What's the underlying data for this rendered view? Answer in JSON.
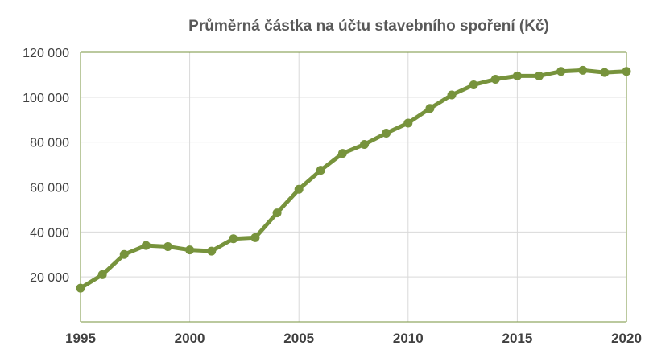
{
  "chart_data": {
    "type": "line",
    "title": "Průměrná částka na účtu stavebního spoření (Kč)",
    "xlabel": "",
    "ylabel": "",
    "x": [
      1995,
      1996,
      1997,
      1998,
      1999,
      2000,
      2001,
      2002,
      2003,
      2004,
      2005,
      2006,
      2007,
      2008,
      2009,
      2010,
      2011,
      2012,
      2013,
      2014,
      2015,
      2016,
      2017,
      2018,
      2019,
      2020
    ],
    "series": [
      {
        "values": [
          15000,
          21000,
          30000,
          34000,
          33500,
          32000,
          31500,
          37000,
          37500,
          48500,
          59000,
          67500,
          75000,
          79000,
          84000,
          88500,
          95000,
          101000,
          105500,
          108000,
          109500,
          109500,
          111500,
          112000,
          111000,
          111500
        ],
        "color": "#77933c"
      }
    ],
    "xlim": [
      1995,
      2020
    ],
    "ylim": [
      0,
      120000
    ],
    "x_ticks": [
      "1995",
      "2000",
      "2005",
      "2010",
      "2015",
      "2020"
    ],
    "x_tick_values": [
      1995,
      2000,
      2005,
      2010,
      2015,
      2020
    ],
    "y_ticks": [
      "20 000",
      "40 000",
      "60 000",
      "80 000",
      "100 000",
      "120 000"
    ],
    "y_tick_values": [
      20000,
      40000,
      60000,
      80000,
      100000,
      120000
    ],
    "grid": true,
    "legend": "none",
    "axis_color": "#77933c",
    "grid_color": "#d9d9d9"
  }
}
